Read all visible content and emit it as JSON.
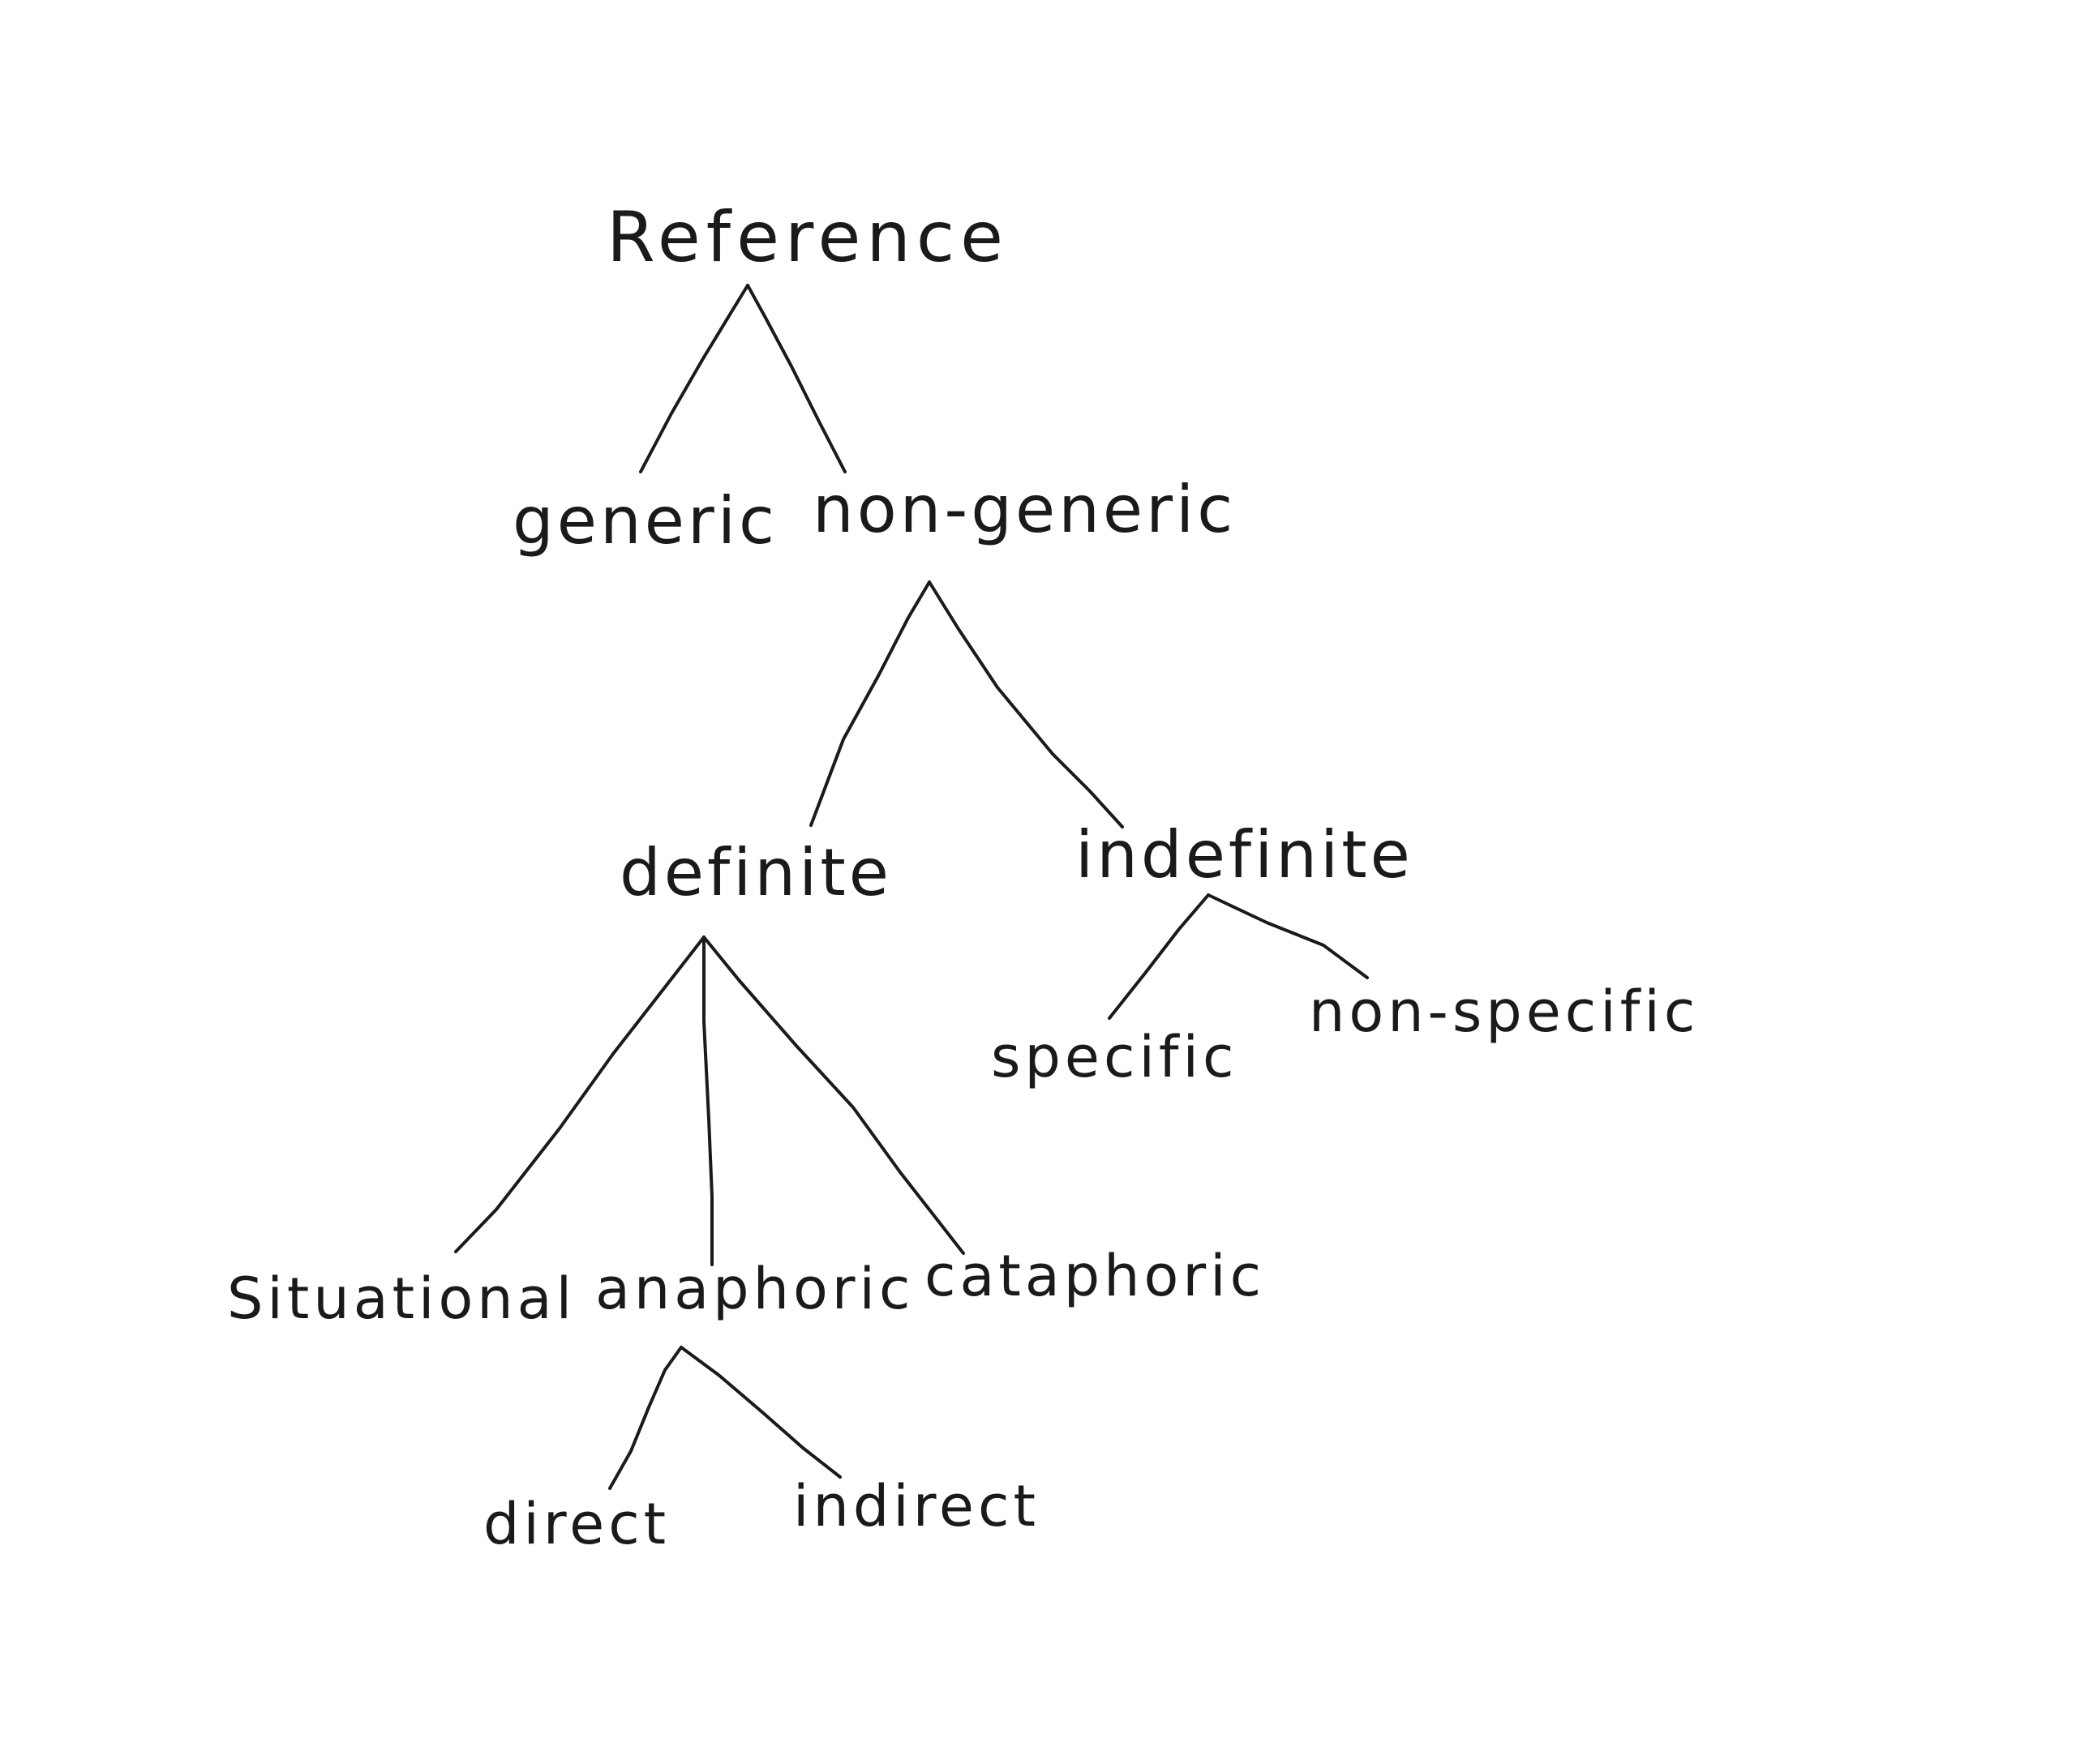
{
  "diagram": {
    "type": "tree",
    "root": {
      "label": "Reference",
      "children": [
        {
          "label": "generic"
        },
        {
          "label": "non-generic",
          "children": [
            {
              "label": "definite",
              "children": [
                {
                  "label": "Situational"
                },
                {
                  "label": "anaphoric",
                  "children": [
                    {
                      "label": "direct"
                    },
                    {
                      "label": "indirect"
                    }
                  ]
                },
                {
                  "label": "cataphoric"
                }
              ]
            },
            {
              "label": "indefinite",
              "children": [
                {
                  "label": "specific"
                },
                {
                  "label": "non-specific"
                }
              ]
            }
          ]
        }
      ]
    },
    "colors": {
      "ink": "#1a1a1a",
      "background": "#ffffff"
    }
  }
}
